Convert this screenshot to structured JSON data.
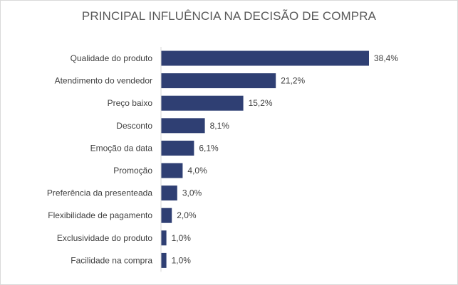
{
  "chart_data": {
    "type": "bar",
    "orientation": "horizontal",
    "title": "PRINCIPAL INFLUÊNCIA NA DECISÃO DE COMPRA",
    "xlabel": "",
    "ylabel": "",
    "grid": false,
    "legend": "none",
    "xlim": [
      0,
      38.4
    ],
    "categories": [
      "Qualidade do produto",
      "Atendimento do vendedor",
      "Preço baixo",
      "Desconto",
      "Emoção da data",
      "Promoção",
      "Preferência da presenteada",
      "Flexibilidade de pagamento",
      "Exclusividade do produto",
      "Facilidade na compra"
    ],
    "values": [
      38.4,
      21.2,
      15.2,
      8.1,
      6.1,
      4.0,
      3.0,
      2.0,
      1.0,
      1.0
    ],
    "data_labels": [
      "38,4%",
      "21,2%",
      "15,2%",
      "8,1%",
      "6,1%",
      "4,0%",
      "3,0%",
      "2,0%",
      "1,0%",
      "1,0%"
    ],
    "bar_color": "#2f3f73",
    "text_color": "#404040",
    "title_color": "#595959"
  }
}
